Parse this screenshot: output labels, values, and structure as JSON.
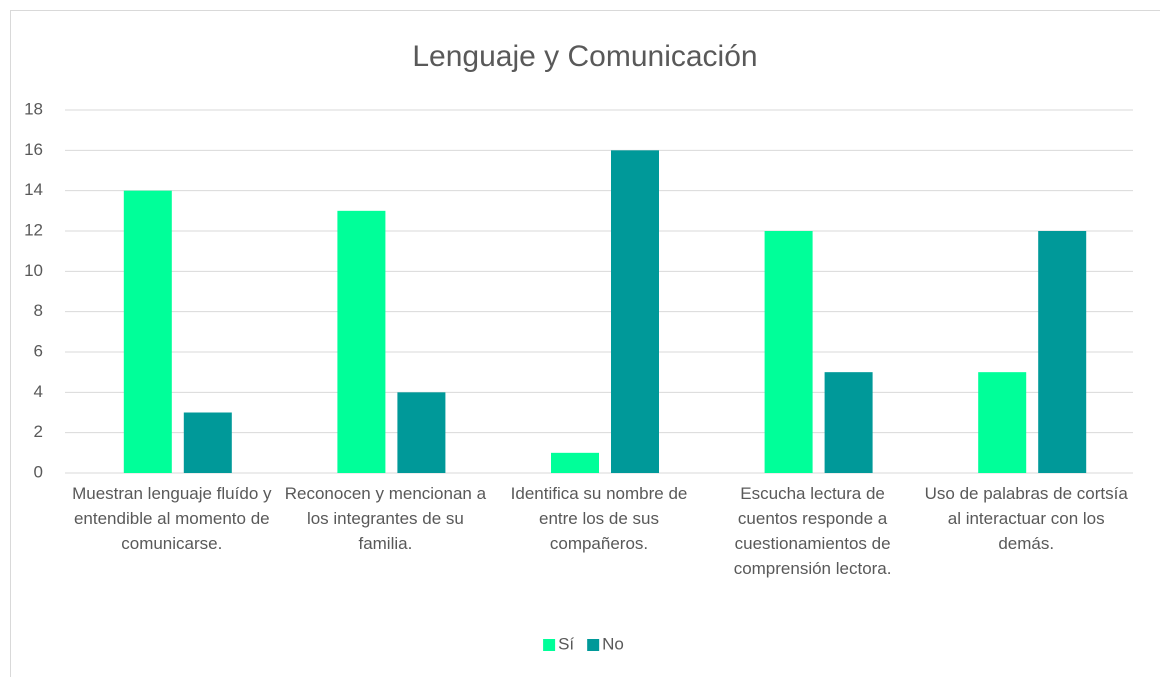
{
  "chart_data": {
    "type": "bar",
    "title": "Lenguaje y Comunicación",
    "categories": [
      "Muestran lenguaje fluído y entendible al momento de comunicarse.",
      "Reconocen y mencionan a los integrantes de su familia.",
      "Identifica su nombre de entre los de sus compañeros.",
      "Escucha lectura de cuentos responde a cuestionamientos de comprensión lectora.",
      "Uso de palabras de cortsía al interactuar con los demás."
    ],
    "series": [
      {
        "name": "Sí",
        "color": "#00FF99",
        "values": [
          14,
          13,
          1,
          12,
          5
        ]
      },
      {
        "name": "No",
        "color": "#009999",
        "values": [
          3,
          4,
          16,
          5,
          12
        ]
      }
    ],
    "ylim": [
      0,
      18
    ],
    "yticks": [
      0,
      2,
      4,
      6,
      8,
      10,
      12,
      14,
      16,
      18
    ],
    "grid": true,
    "legend": "bottom"
  }
}
